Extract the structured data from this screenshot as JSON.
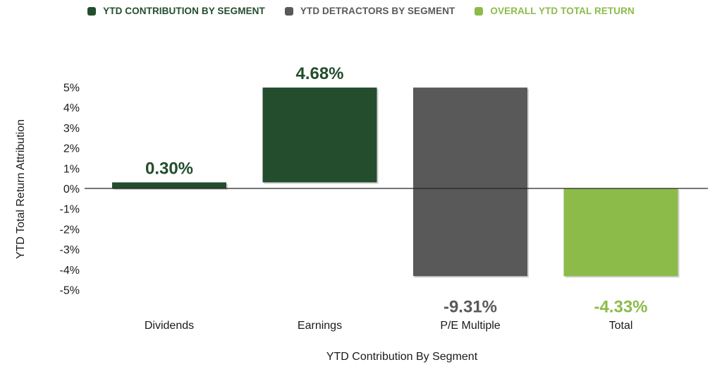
{
  "legend": [
    {
      "label": "YTD CONTRIBUTION BY SEGMENT",
      "color": "#234d2c"
    },
    {
      "label": "YTD DETRACTORS BY SEGMENT",
      "color": "#595959"
    },
    {
      "label": "OVERALL YTD TOTAL RETURN",
      "color": "#8dbb4a"
    }
  ],
  "chart_data": {
    "type": "bar",
    "subtype": "waterfall",
    "xlabel": "YTD Contribution By Segment",
    "ylabel": "YTD Total Return Attribution",
    "ylim": [
      -5,
      5
    ],
    "yticks": [
      5,
      4,
      3,
      2,
      1,
      0,
      -1,
      -2,
      -3,
      -4,
      -5
    ],
    "ytick_labels": [
      "5%",
      "4%",
      "3%",
      "2%",
      "1%",
      "0%",
      "-1%",
      "-2%",
      "-3%",
      "-4%",
      "-5%"
    ],
    "grid": false,
    "legend_position": "top-center",
    "categories": [
      "Dividends",
      "Earnings",
      "P/E Multiple",
      "Total"
    ],
    "values": [
      0.3,
      4.68,
      -9.31,
      -4.33
    ],
    "value_labels": [
      "0.30%",
      "4.68%",
      "-9.31%",
      "-4.33%"
    ],
    "bar_start": [
      0,
      0.3,
      4.98,
      0
    ],
    "bar_end": [
      0.3,
      4.98,
      -4.33,
      -4.33
    ],
    "bar_colors": [
      "#234d2c",
      "#234d2c",
      "#595959",
      "#8dbb4a"
    ],
    "label_colors": [
      "#234d2c",
      "#234d2c",
      "#595959",
      "#8dbb4a"
    ],
    "label_position": [
      "above",
      "above",
      "below-axis",
      "below-axis"
    ]
  }
}
